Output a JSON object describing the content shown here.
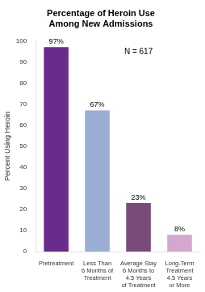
{
  "chart_data": {
    "type": "bar",
    "title": "Percentage of Heroin Use\nAmong New Admissions",
    "categories": [
      "Pretreatment",
      "Less Than\n6 Months of\nTreatment",
      "Average Stay\n6 Months to\n4.5 Years\nof Treatment",
      "Long-Term\nTreatment\n4.5 Years\nor More"
    ],
    "values": [
      97,
      67,
      23,
      8
    ],
    "value_labels": [
      "97%",
      "67%",
      "23%",
      "8%"
    ],
    "data_labels": true,
    "colors": [
      "#6a2c8c",
      "#9badd4",
      "#7a4a7a",
      "#d4a8cc"
    ],
    "ylabel": "Percent Using Heroin",
    "ylim": [
      0,
      100
    ],
    "yticks": [
      0,
      10,
      20,
      30,
      40,
      50,
      60,
      70,
      80,
      90,
      100
    ],
    "annotation": "N = 617",
    "grid": false
  }
}
